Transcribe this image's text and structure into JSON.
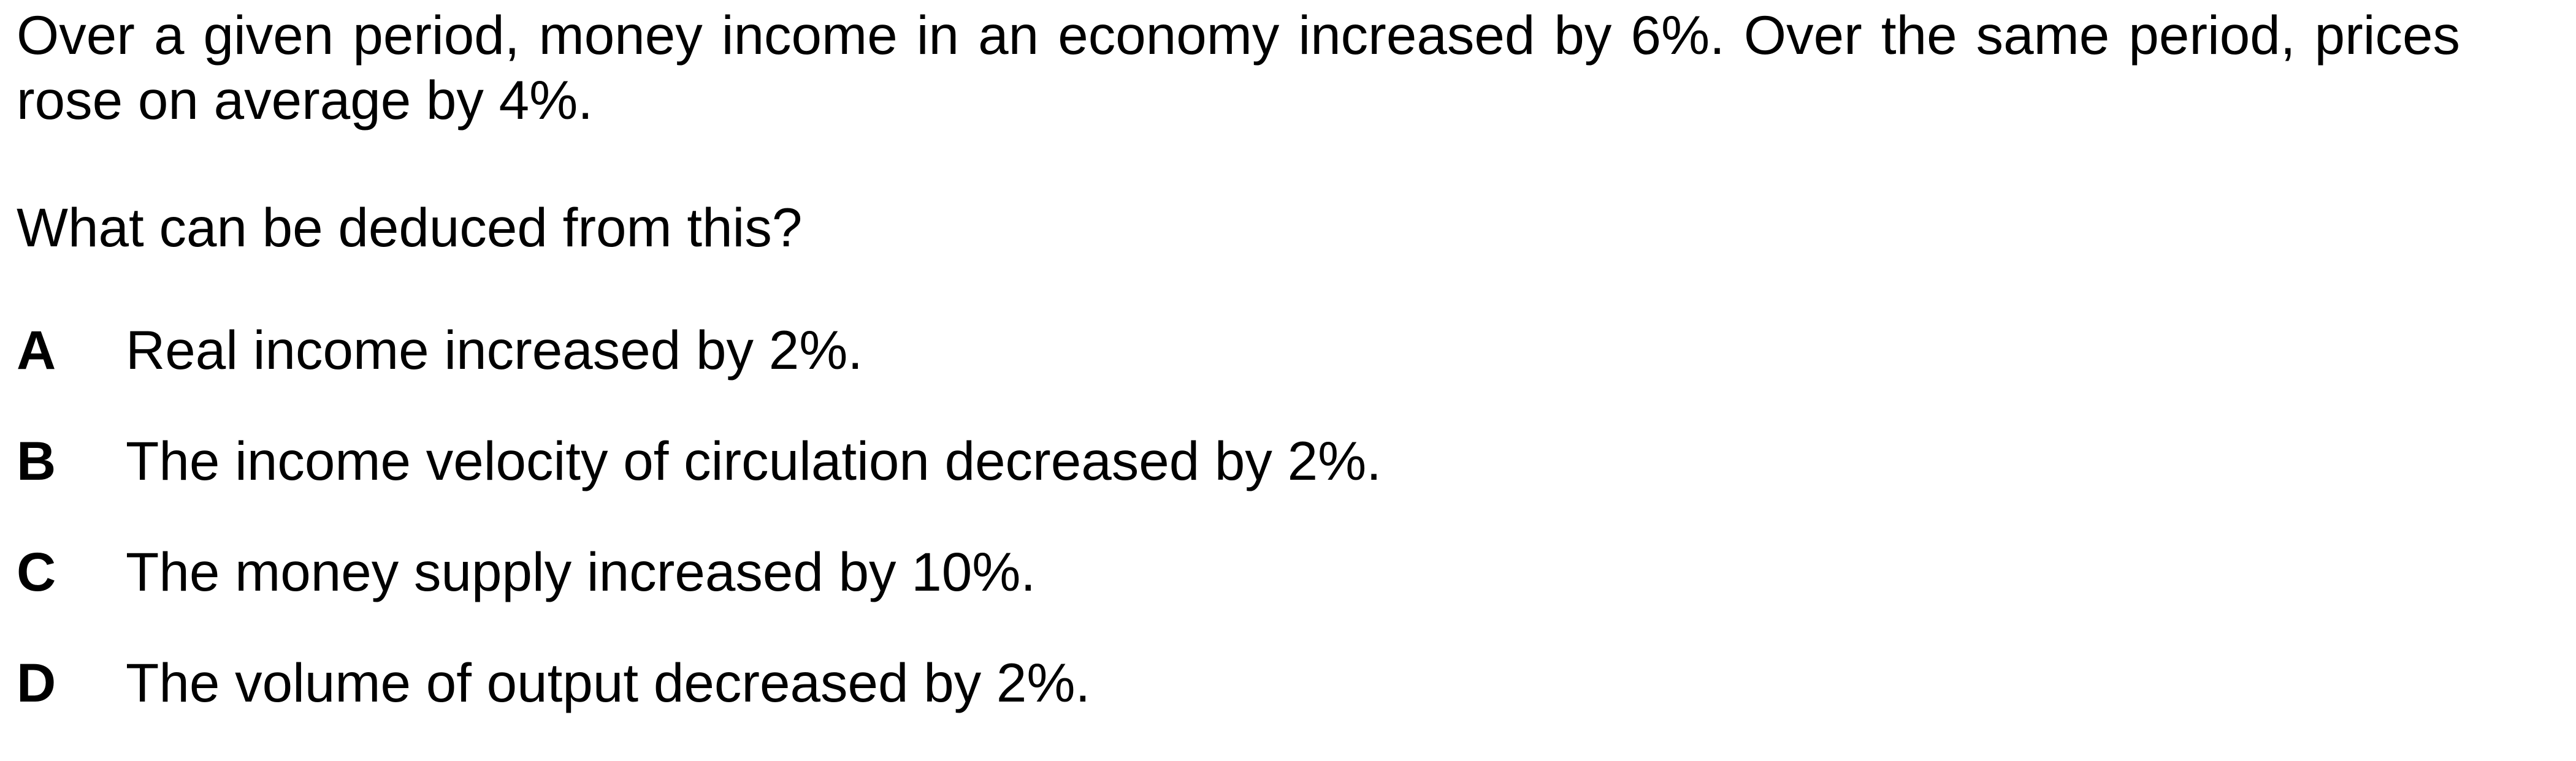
{
  "question": {
    "stem": "Over a given period, money income in an economy increased by 6%. Over the same period, prices rose on average by 4%.",
    "prompt": "What can be deduced from this?"
  },
  "options": [
    {
      "letter": "A",
      "text": "Real income increased by 2%."
    },
    {
      "letter": "B",
      "text": "The income velocity of circulation decreased by 2%."
    },
    {
      "letter": "C",
      "text": "The money supply increased by 10%."
    },
    {
      "letter": "D",
      "text": "The volume of output decreased by 2%."
    }
  ]
}
